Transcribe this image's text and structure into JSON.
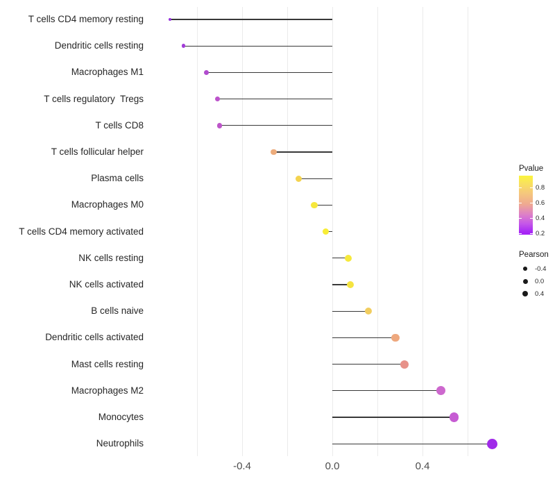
{
  "chart_data": {
    "type": "scatter",
    "subtype": "lollipop",
    "title": "",
    "xlabel": "",
    "ylabel": "",
    "xlim": [
      -0.82,
      0.79
    ],
    "grid": "vertical-only",
    "x_gridline_values": [
      -0.6,
      -0.4,
      -0.2,
      0.0,
      0.2,
      0.4,
      0.6
    ],
    "x_axis_ticks": [
      {
        "value": -0.4,
        "label": "-0.4"
      },
      {
        "value": 0.0,
        "label": "0.0"
      },
      {
        "value": 0.4,
        "label": "0.4"
      }
    ],
    "series_note": "each row: immune cell type, Pearson correlation (x / dot size), estimated Pvalue (dot color)",
    "rows": [
      {
        "label": "T cells CD4 memory resting",
        "pearson": -0.72,
        "pvalue": 0.15,
        "color": "#9632de",
        "diameter": 4
      },
      {
        "label": "Dendritic cells resting",
        "pearson": -0.66,
        "pvalue": 0.25,
        "color": "#a23cd8",
        "diameter": 5.5
      },
      {
        "label": "Macrophages M1",
        "pearson": -0.56,
        "pvalue": 0.33,
        "color": "#b14cce",
        "diameter": 7
      },
      {
        "label": "T cells regulatory  Tregs",
        "pearson": -0.51,
        "pvalue": 0.36,
        "color": "#bc53cb",
        "diameter": 7
      },
      {
        "label": "T cells CD8",
        "pearson": -0.5,
        "pvalue": 0.37,
        "color": "#bd55c9",
        "diameter": 7.5
      },
      {
        "label": "T cells follicular helper",
        "pearson": -0.26,
        "pvalue": 0.62,
        "color": "#edac7c",
        "diameter": 8.5
      },
      {
        "label": "Plasma cells",
        "pearson": -0.15,
        "pvalue": 0.76,
        "color": "#f4d34f",
        "diameter": 9
      },
      {
        "label": "Macrophages M0",
        "pearson": -0.08,
        "pvalue": 0.84,
        "color": "#f6e73c",
        "diameter": 9.5
      },
      {
        "label": "T cells CD4 memory activated",
        "pearson": -0.03,
        "pvalue": 0.89,
        "color": "#f8ed36",
        "diameter": 9.5
      },
      {
        "label": "NK cells resting",
        "pearson": 0.07,
        "pvalue": 0.86,
        "color": "#f6e93b",
        "diameter": 10
      },
      {
        "label": "NK cells activated",
        "pearson": 0.08,
        "pvalue": 0.85,
        "color": "#f5e440",
        "diameter": 10.5
      },
      {
        "label": "B cells naive",
        "pearson": 0.16,
        "pvalue": 0.74,
        "color": "#f1cd5f",
        "diameter": 10.5
      },
      {
        "label": "Dendritic cells activated",
        "pearson": 0.28,
        "pvalue": 0.63,
        "color": "#eea87e",
        "diameter": 11.5
      },
      {
        "label": "Mast cells resting",
        "pearson": 0.32,
        "pvalue": 0.58,
        "color": "#e79189",
        "diameter": 12
      },
      {
        "label": "Macrophages M2",
        "pearson": 0.48,
        "pvalue": 0.4,
        "color": "#cd68ce",
        "diameter": 13
      },
      {
        "label": "Monocytes",
        "pearson": 0.54,
        "pvalue": 0.36,
        "color": "#c65cd3",
        "diameter": 13.5
      },
      {
        "label": "Neutrophils",
        "pearson": 0.71,
        "pvalue": 0.17,
        "color": "#a02ae9",
        "diameter": 15
      }
    ],
    "legend_pvalue": {
      "title": "Pvalue",
      "tick_labels": [
        "0.8",
        "0.6",
        "0.4",
        "0.2"
      ],
      "gradient_top_color": "#fbf43c",
      "gradient_mid_color": "#efaa90",
      "gradient_bottom_color": "#a51ff6",
      "range_top": 0.92,
      "range_bottom": 0.16,
      "position": "right"
    },
    "legend_pearson": {
      "title": "Pearson",
      "items": [
        {
          "label": "-0.4",
          "diameter": 5.7
        },
        {
          "label": "0.0",
          "diameter": 7.0
        },
        {
          "label": "0.4",
          "diameter": 8.3
        }
      ],
      "dot_color": "#1a1a1a",
      "position": "right"
    },
    "stem_color": "#383838",
    "gridline_color": "#ebebeb"
  }
}
